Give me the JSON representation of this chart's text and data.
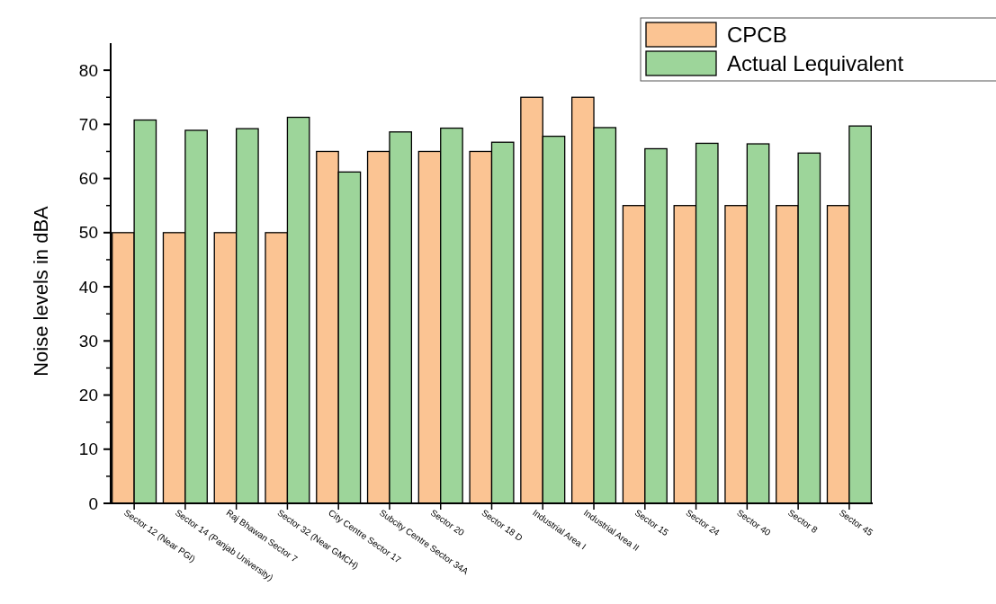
{
  "chart_data": {
    "type": "bar",
    "ylabel": "Noise levels in dBA",
    "categories": [
      "Sector 12 (Near PGI)",
      "Sector 14 (Panjab University)",
      "Raj Bhawan Sector 7",
      "Sector 32 (Near GMCH)",
      "City Centre Sector 17",
      "Subcity Centre Sector 34A",
      "Sector 20",
      "Sector 18 D",
      "Industrial Area I",
      "Industrial Area II",
      "Sector 15",
      "Sector 24",
      "Sector 40",
      "Sector 8",
      "Sector 45"
    ],
    "series": [
      {
        "name": "CPCB",
        "color": "#fbc493",
        "values": [
          50,
          50,
          50,
          50,
          65,
          65,
          65,
          65,
          75,
          75,
          55,
          55,
          55,
          55,
          55
        ]
      },
      {
        "name": "Actual Lequivalent",
        "color": "#9dd59a",
        "values": [
          70.8,
          68.9,
          69.2,
          71.3,
          61.2,
          68.6,
          69.3,
          66.7,
          67.8,
          69.4,
          65.5,
          66.5,
          66.4,
          64.7,
          69.7
        ]
      }
    ],
    "ylim": [
      0,
      85
    ],
    "yticks": [
      0,
      10,
      20,
      30,
      40,
      50,
      60,
      70,
      80
    ],
    "grid": false,
    "legend": "top right"
  }
}
